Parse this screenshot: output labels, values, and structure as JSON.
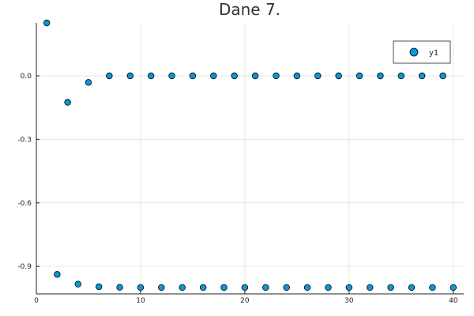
{
  "chart_data": {
    "type": "scatter",
    "title": "Dane 7.",
    "xlabel": "",
    "ylabel": "",
    "xlim": [
      0,
      41
    ],
    "ylim": [
      -1.03,
      0.25
    ],
    "x_ticks": [
      0,
      10,
      20,
      30,
      40
    ],
    "y_ticks": [
      0.0,
      -0.3,
      -0.6,
      -0.9
    ],
    "x_tick_labels": [
      "0",
      "10",
      "20",
      "30",
      "40"
    ],
    "y_tick_labels": [
      "0.0",
      "-0.3",
      "-0.6",
      "-0.9"
    ],
    "grid": true,
    "legend_position": "top-right",
    "marker_color": "#0a97d9",
    "series": [
      {
        "name": "y1",
        "x": [
          1,
          2,
          3,
          4,
          5,
          6,
          7,
          8,
          9,
          10,
          11,
          12,
          13,
          14,
          15,
          16,
          17,
          18,
          19,
          20,
          21,
          22,
          23,
          24,
          25,
          26,
          27,
          28,
          29,
          30,
          31,
          32,
          33,
          34,
          35,
          36,
          37,
          38,
          39,
          40
        ],
        "y": [
          0.25,
          -0.938,
          -0.125,
          -0.984,
          -0.031,
          -0.996,
          0.0,
          -0.999,
          0.0,
          -1.0,
          0.0,
          -1.0,
          0.0,
          -1.0,
          0.0,
          -1.0,
          0.0,
          -1.0,
          0.0,
          -1.0,
          0.0,
          -1.0,
          0.0,
          -1.0,
          0.0,
          -1.0,
          0.0,
          -1.0,
          0.0,
          -1.0,
          0.0,
          -1.0,
          0.0,
          -1.0,
          0.0,
          -1.0,
          0.0,
          -1.0,
          0.0,
          -1.0
        ]
      }
    ]
  }
}
